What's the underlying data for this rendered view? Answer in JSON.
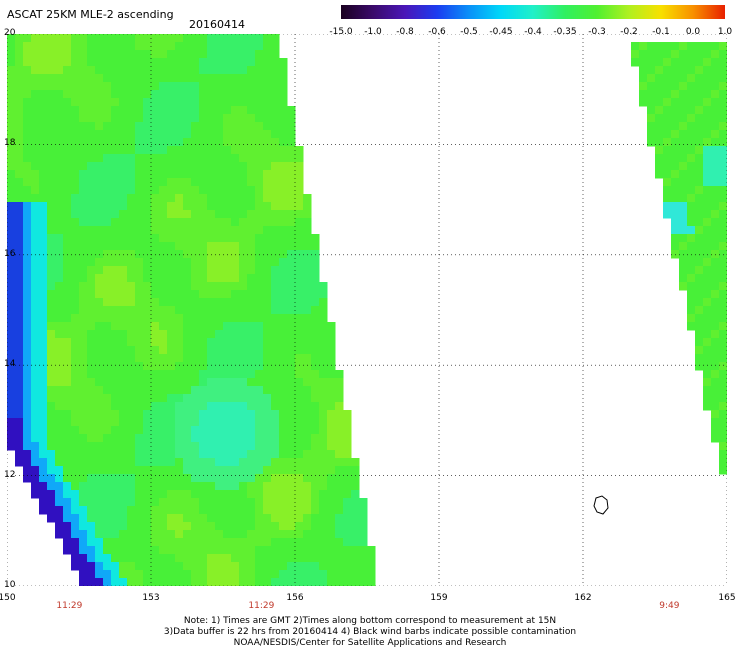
{
  "header": {
    "title": "ASCAT 25KM MLE-2 ascending",
    "date": "20160414"
  },
  "colorbar": {
    "labels": [
      "-15.0",
      "-1.0",
      "-0.8",
      "-0.6",
      "-0.5",
      "-0.45",
      "-0.4",
      "-0.35",
      "-0.3",
      "-0.2",
      "-0.1",
      "0.0",
      "1.0"
    ],
    "colors": [
      "#1a0020",
      "#3a0a6a",
      "#4a16b8",
      "#1c3cf0",
      "#0a90f8",
      "#00d8f8",
      "#20f0c8",
      "#30f060",
      "#50f030",
      "#b0f020",
      "#f8e000",
      "#f89000",
      "#e82000"
    ]
  },
  "map": {
    "lat_labels": [
      "20",
      "18",
      "16",
      "14",
      "12",
      "10"
    ],
    "lon_labels": [
      "150",
      "153",
      "156",
      "159",
      "162",
      "165"
    ],
    "lat_range": [
      10,
      20
    ],
    "lon_range": [
      150,
      165
    ],
    "time_labels": [
      {
        "text": "11:29",
        "lon": 151.3
      },
      {
        "text": "11:29",
        "lon": 155.3
      },
      {
        "text": "9:49",
        "lon": 163.8
      }
    ],
    "grid": true
  },
  "notes": {
    "line1": "Note: 1) Times are GMT 2)Times along bottom correspond to measurement at 15N",
    "line2": "3)Data buffer is 22 hrs from 20160414 4) Black wind barbs indicate possible contamination",
    "line3": "NOAA/NESDIS/Center for Satellite Applications and Research"
  }
}
